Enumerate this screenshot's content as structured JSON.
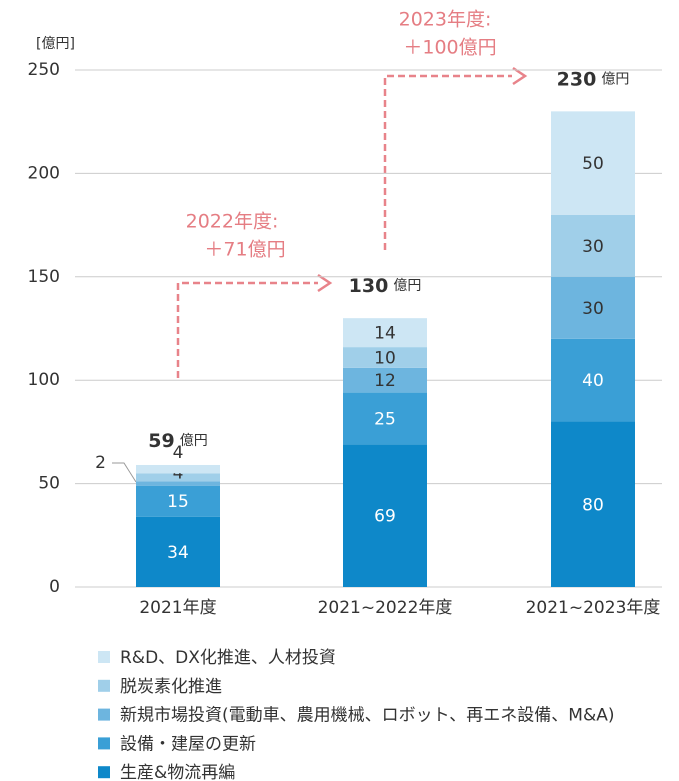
{
  "chart_data": {
    "type": "stacked_bar",
    "y_unit": "[億円]",
    "categories": [
      "2021年度",
      "2021~2022年度",
      "2021~2023年度"
    ],
    "series": [
      {
        "name": "生産&物流再編",
        "color": "#0e88c9",
        "values": [
          34,
          69,
          80
        ]
      },
      {
        "name": "設備・建屋の更新",
        "color": "#3a9fd6",
        "values": [
          15,
          25,
          40
        ]
      },
      {
        "name": "新規市場投資(電動車、農用機械、ロボット、再エネ設備、M&A)",
        "color": "#6db5df",
        "values": [
          2,
          12,
          30
        ]
      },
      {
        "name": "脱炭素化推進",
        "color": "#a0cfe9",
        "values": [
          4,
          10,
          30
        ]
      },
      {
        "name": "R&D、DX化推進、人材投資",
        "color": "#cde6f4",
        "values": [
          4,
          14,
          50
        ]
      }
    ],
    "totals": [
      59,
      130,
      230
    ],
    "total_unit": "億円",
    "annotations": [
      {
        "lines": [
          "2022年度:",
          "＋71億円"
        ]
      },
      {
        "lines": [
          "2023年度:",
          "＋100億円"
        ]
      }
    ],
    "ylim": [
      0,
      250
    ],
    "yticks": [
      0,
      50,
      100,
      150,
      200,
      250
    ],
    "grid": true
  }
}
